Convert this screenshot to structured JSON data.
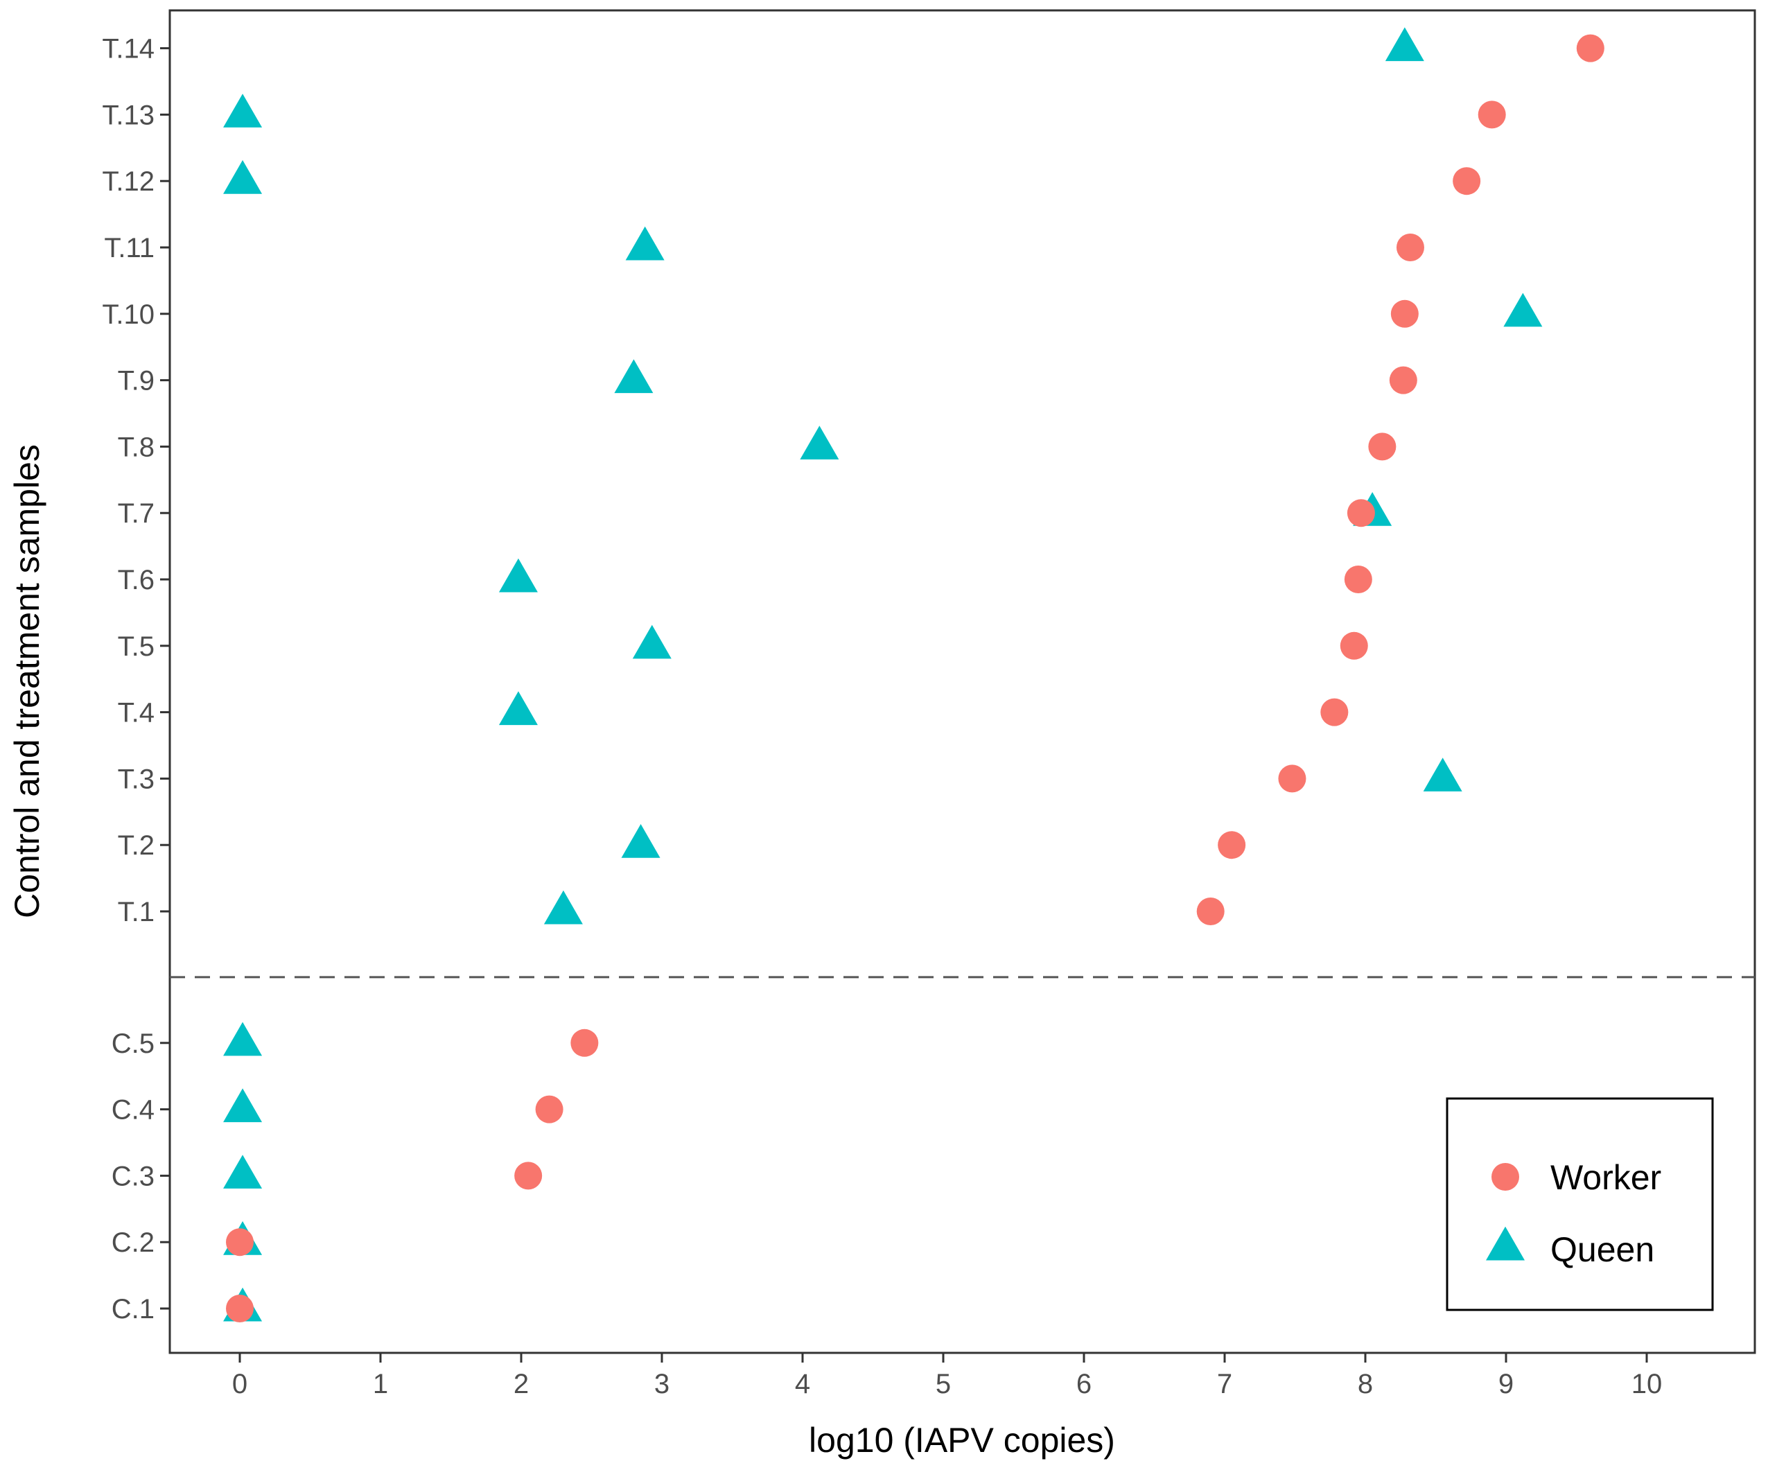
{
  "chart_data": {
    "type": "scatter",
    "title": "",
    "xlabel": "log10 (IAPV copies)",
    "ylabel": "Control and treatment samples",
    "xlim": [
      -0.5,
      11.1
    ],
    "x_ticks": [
      "0",
      "1",
      "2",
      "3",
      "4",
      "5",
      "6",
      "7",
      "8",
      "9",
      "10"
    ],
    "grid": false,
    "legend_position": "bottom-right",
    "categories": [
      "C.1",
      "C.2",
      "C.3",
      "C.4",
      "C.5",
      "T.1",
      "T.2",
      "T.3",
      "T.4",
      "T.5",
      "T.6",
      "T.7",
      "T.8",
      "T.9",
      "T.10",
      "T.11",
      "T.12",
      "T.13",
      "T.14"
    ],
    "separator": {
      "style": "dashed",
      "between": [
        "C.5",
        "T.1"
      ]
    },
    "series": [
      {
        "name": "Worker",
        "marker": "circle",
        "color": "#F8766D",
        "values": [
          0.0,
          0.0,
          2.05,
          2.2,
          2.45,
          6.9,
          7.05,
          7.48,
          7.78,
          7.92,
          7.95,
          7.97,
          8.12,
          8.27,
          8.28,
          8.32,
          8.72,
          8.9,
          9.6
        ]
      },
      {
        "name": "Queen",
        "marker": "triangle",
        "color": "#00BFC4",
        "values": [
          0.02,
          0.02,
          0.02,
          0.02,
          0.02,
          2.3,
          2.85,
          8.55,
          1.98,
          2.93,
          1.98,
          8.05,
          4.12,
          2.8,
          9.12,
          2.88,
          0.02,
          0.02,
          8.28
        ]
      }
    ]
  }
}
